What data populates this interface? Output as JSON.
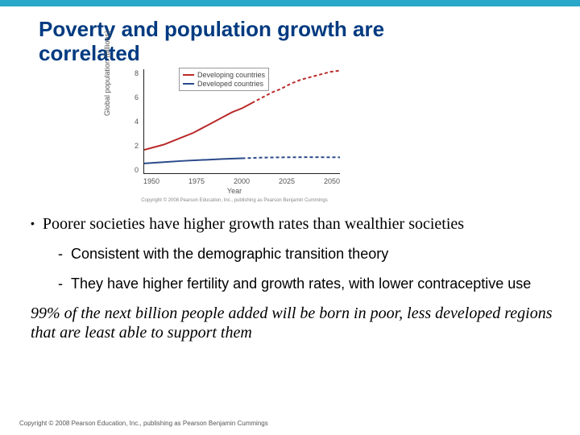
{
  "title": "Poverty and population growth are correlated",
  "chart": {
    "type": "line",
    "ylabel": "Global population (billions)",
    "xlabel": "Year",
    "y_ticks": [
      8,
      6,
      4,
      2,
      0
    ],
    "x_ticks": [
      1950,
      1975,
      2000,
      2025,
      2050
    ],
    "xlim": [
      1950,
      2050
    ],
    "ylim": [
      0,
      8
    ],
    "series": [
      {
        "name": "Developing countries",
        "color": "#bb2a2a",
        "solid_through_x": 2008,
        "points": [
          [
            1950,
            1.8
          ],
          [
            1955,
            2.0
          ],
          [
            1960,
            2.2
          ],
          [
            1965,
            2.5
          ],
          [
            1970,
            2.8
          ],
          [
            1975,
            3.1
          ],
          [
            1980,
            3.5
          ],
          [
            1985,
            3.9
          ],
          [
            1990,
            4.3
          ],
          [
            1995,
            4.7
          ],
          [
            2000,
            5.0
          ],
          [
            2005,
            5.4
          ],
          [
            2010,
            5.8
          ],
          [
            2015,
            6.2
          ],
          [
            2020,
            6.5
          ],
          [
            2025,
            6.9
          ],
          [
            2030,
            7.2
          ],
          [
            2035,
            7.4
          ],
          [
            2040,
            7.6
          ],
          [
            2045,
            7.8
          ],
          [
            2050,
            7.9
          ]
        ]
      },
      {
        "name": "Developed countries",
        "color": "#2a4a8a",
        "solid_through_x": 2008,
        "points": [
          [
            1950,
            0.75
          ],
          [
            1960,
            0.85
          ],
          [
            1970,
            0.95
          ],
          [
            1980,
            1.02
          ],
          [
            1990,
            1.09
          ],
          [
            2000,
            1.15
          ],
          [
            2010,
            1.2
          ],
          [
            2020,
            1.22
          ],
          [
            2030,
            1.23
          ],
          [
            2040,
            1.23
          ],
          [
            2050,
            1.22
          ]
        ]
      }
    ],
    "line_width": 2,
    "dash_pattern": "4 3",
    "grid": {
      "visible": false,
      "color": "#e0e0e0"
    },
    "background_color": "#ffffff",
    "font_sizes": {
      "axis": 9,
      "legend": 9,
      "label": 9
    },
    "credit": "Copyright © 2008 Pearson Education, Inc., publishing as Pearson Benjamin Cummings"
  },
  "bullets": {
    "level1_marker": "•",
    "level2_marker": "-",
    "items": [
      {
        "text": "Poorer societies have higher growth rates than wealthier societies",
        "children": [
          "Consistent with the demographic transition theory",
          "They have higher fertility and growth rates, with lower contraceptive use"
        ]
      }
    ],
    "closing": "99% of the next billion people added will be born in poor, less developed regions that are least able to support them"
  },
  "copyright": "Copyright © 2008 Pearson Education, Inc., publishing as Pearson Benjamin Cummings"
}
